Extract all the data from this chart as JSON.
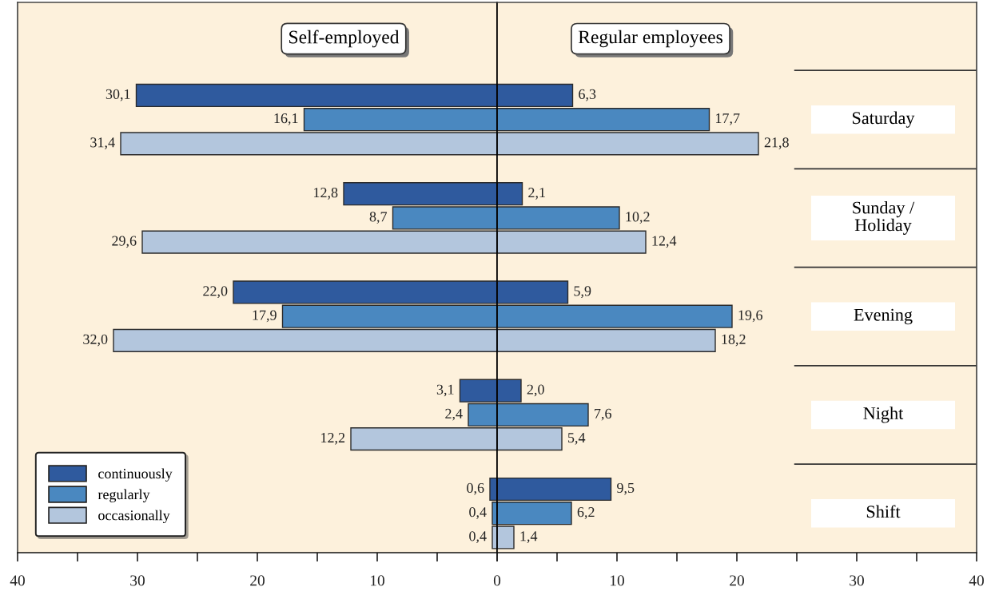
{
  "chart_data": [
    {
      "type": "bar",
      "orientation": "horizontal",
      "title": "Self-employed",
      "categories": [
        null,
        null,
        null,
        null,
        null
      ],
      "series": [
        {
          "name": "continuously",
          "color": "#2f5a9e",
          "values": [
            30.1,
            12.8,
            22.0,
            3.1,
            0.6
          ],
          "value_labels": [
            "30,1",
            "12,8",
            "22,0",
            "3,1",
            "0,6"
          ]
        },
        {
          "name": "regularly",
          "color": "#4a88c0",
          "values": [
            16.1,
            8.7,
            17.9,
            2.4,
            0.4
          ],
          "value_labels": [
            "16,1",
            "8,7",
            "17,9",
            "2,4",
            "0,4"
          ]
        },
        {
          "name": "occasionally",
          "color": "#b3c6dd",
          "values": [
            31.4,
            29.6,
            32.0,
            12.2,
            0.4
          ],
          "value_labels": [
            "31,4",
            "29,6",
            "32,0",
            "12,2",
            "0,4"
          ]
        }
      ],
      "xlim": [
        40,
        0
      ],
      "xticks": [
        40,
        {
          "value": 35,
          "label": null
        },
        30,
        {
          "value": 25,
          "label": null
        },
        20,
        {
          "value": 15,
          "label": null
        },
        10,
        {
          "value": 5,
          "label": null
        },
        {
          "value": 0,
          "label": null
        }
      ],
      "tick_labels": "x",
      "legend": "bottom left"
    },
    {
      "type": "bar",
      "orientation": "horizontal",
      "title": "Regular employees",
      "categories": [
        "Saturday",
        "Sunday /\nHoliday",
        "Evening",
        "Night",
        "Shift"
      ],
      "series": [
        {
          "color": "#2f5a9e",
          "values": [
            6.3,
            2.1,
            5.9,
            2.0,
            9.5
          ],
          "value_labels": [
            "6,3",
            "2,1",
            "5,9",
            "2,0",
            "9,5"
          ]
        },
        {
          "color": "#4a88c0",
          "values": [
            17.7,
            10.2,
            19.6,
            7.6,
            6.2
          ],
          "value_labels": [
            "17,7",
            "10,2",
            "19,6",
            "7,6",
            "6,2"
          ]
        },
        {
          "color": "#b3c6dd",
          "values": [
            21.8,
            12.4,
            18.2,
            5.4,
            1.4
          ],
          "value_labels": [
            "21,8",
            "12,4",
            "18,2",
            "5,4",
            "1,4"
          ]
        }
      ],
      "xlim": [
        0,
        40
      ],
      "xticks": [
        0,
        {
          "value": 5,
          "label": null
        },
        10,
        {
          "value": 15,
          "label": null
        },
        20,
        {
          "value": 25,
          "label": null
        },
        30,
        {
          "value": 35,
          "label": null
        },
        40
      ]
    }
  ]
}
